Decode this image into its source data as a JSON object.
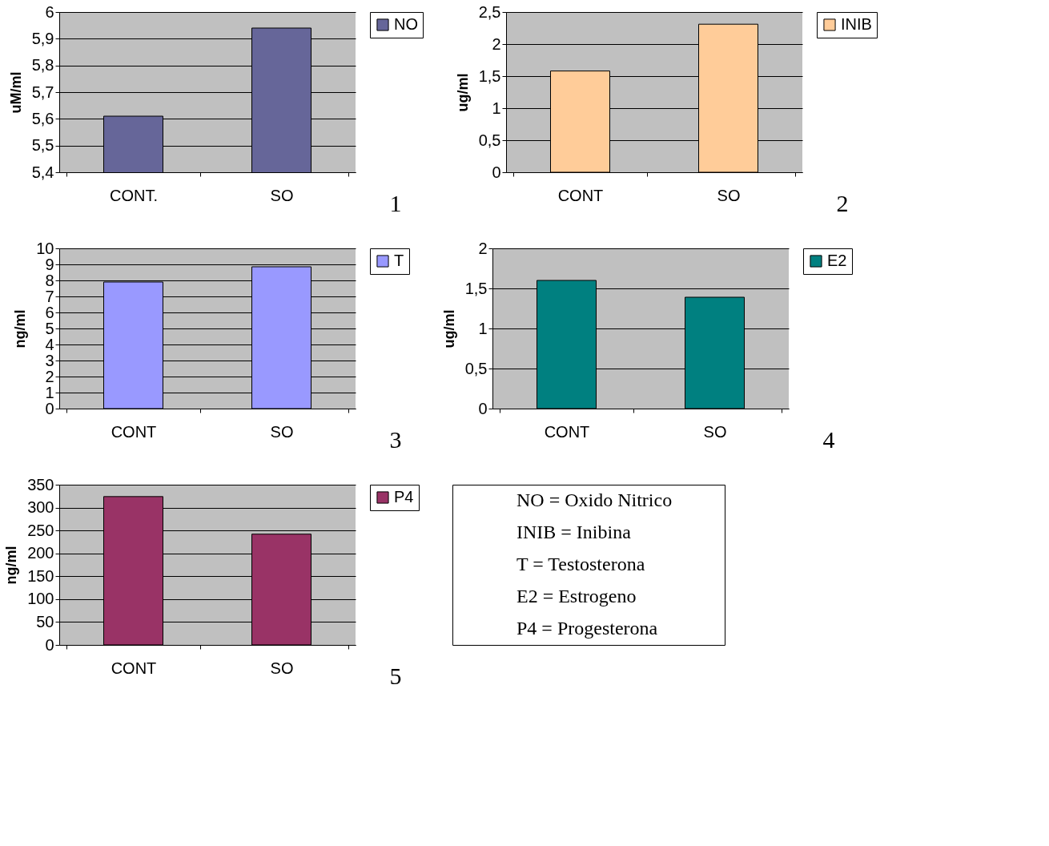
{
  "chart_data": [
    {
      "type": "bar",
      "categories": [
        "CONT.",
        "SO"
      ],
      "series": [
        {
          "name": "NO",
          "color": "#666699",
          "values": [
            5.61,
            5.94
          ]
        }
      ],
      "ylabel": "uM/ml",
      "ylim": [
        5.4,
        6
      ],
      "yticks": [
        {
          "value": 5.4,
          "label": "5,4"
        },
        {
          "value": 5.5,
          "label": "5,5"
        },
        {
          "value": 5.6,
          "label": "5,6"
        },
        {
          "value": 5.7,
          "label": "5,7"
        },
        {
          "value": 5.8,
          "label": "5,8"
        },
        {
          "value": 5.9,
          "label": "5,9"
        },
        6
      ],
      "grid": "y",
      "legend": "right",
      "annotations": [
        "1"
      ]
    },
    {
      "type": "bar",
      "categories": [
        "CONT",
        "SO"
      ],
      "series": [
        {
          "name": "INIB",
          "color": "#ffcc99",
          "values": [
            1.58,
            2.31
          ]
        }
      ],
      "ylabel": "ug/ml",
      "ylim": [
        0,
        2.5
      ],
      "yticks": [
        0,
        {
          "value": 0.5,
          "label": "0,5"
        },
        1,
        {
          "value": 1.5,
          "label": "1,5"
        },
        2,
        {
          "value": 2.5,
          "label": "2,5"
        }
      ],
      "grid": "y",
      "legend": "right",
      "annotations": [
        "2"
      ]
    },
    {
      "type": "bar",
      "categories": [
        "CONT",
        "SO"
      ],
      "series": [
        {
          "name": "T",
          "color": "#9999ff",
          "values": [
            7.9,
            8.85
          ]
        }
      ],
      "ylabel": "ng/ml",
      "ylim": [
        0,
        10
      ],
      "yticks": [
        0,
        1,
        2,
        3,
        4,
        5,
        6,
        7,
        8,
        9,
        10
      ],
      "grid": "y",
      "legend": "right",
      "annotations": [
        "3"
      ]
    },
    {
      "type": "bar",
      "categories": [
        "CONT",
        "SO"
      ],
      "series": [
        {
          "name": "E2",
          "color": "#008080",
          "values": [
            1.6,
            1.39
          ]
        }
      ],
      "ylabel": "ug/ml",
      "ylim": [
        0,
        2
      ],
      "yticks": [
        0,
        {
          "value": 0.5,
          "label": "0,5"
        },
        1,
        {
          "value": 1.5,
          "label": "1,5"
        },
        2
      ],
      "grid": "y",
      "legend": "right",
      "annotations": [
        "4"
      ]
    },
    {
      "type": "bar",
      "categories": [
        "CONT",
        "SO"
      ],
      "series": [
        {
          "name": "P4",
          "color": "#993366",
          "values": [
            324,
            242
          ]
        }
      ],
      "ylabel": "ng/ml",
      "ylim": [
        0,
        350
      ],
      "yticks": [
        0,
        50,
        100,
        150,
        200,
        250,
        300,
        350
      ],
      "grid": "y",
      "legend": "right",
      "annotations": [
        "5"
      ]
    },
    {
      "type": "other",
      "annotations": [
        "NO = Oxido Nitrico",
        "INIB = Inibina",
        "T = Testosterona",
        "E2 = Estrogeno",
        "P4 = Progesterona"
      ]
    }
  ]
}
